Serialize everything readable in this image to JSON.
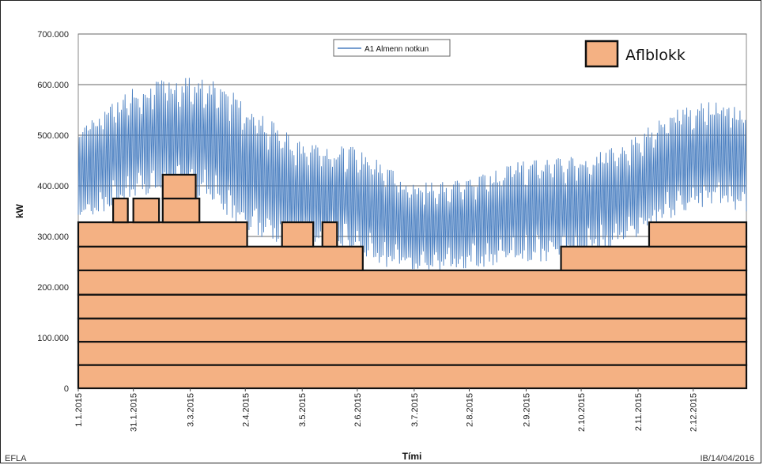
{
  "chart_data": {
    "type": "line",
    "xlabel": "Tími",
    "ylabel": "kW",
    "ylim": [
      0,
      700000
    ],
    "yticks": [
      "0",
      "100.000",
      "200.000",
      "300.000",
      "400.000",
      "500.000",
      "600.000",
      "700.000"
    ],
    "xticks": [
      "1.1.2015",
      "31.1.2015",
      "3.3.2015",
      "2.4.2015",
      "3.5.2015",
      "2.6.2015",
      "3.7.2015",
      "2.8.2015",
      "2.9.2015",
      "2.10.2015",
      "2.11.2015",
      "2.12.2015"
    ],
    "grid": true,
    "series": [
      {
        "name": "A1 Almenn notkun",
        "color": "#4a7fc1",
        "envelope": {
          "day": [
            0,
            15,
            30,
            45,
            60,
            75,
            90,
            105,
            120,
            135,
            150,
            165,
            180,
            195,
            210,
            225,
            240,
            255,
            270,
            285,
            300,
            315,
            330,
            345,
            364
          ],
          "high": [
            510,
            545,
            585,
            600,
            605,
            600,
            560,
            520,
            480,
            470,
            470,
            440,
            400,
            400,
            405,
            420,
            440,
            445,
            450,
            460,
            480,
            520,
            550,
            560,
            545
          ],
          "low": [
            340,
            360,
            390,
            395,
            395,
            370,
            330,
            300,
            290,
            280,
            280,
            250,
            240,
            240,
            245,
            250,
            260,
            260,
            265,
            280,
            300,
            330,
            360,
            370,
            355
          ]
        }
      }
    ],
    "power_blocks": {
      "label": "Aflblokk",
      "color": "#f4b183",
      "blocks": [
        {
          "start_day": 0,
          "end_day": 364,
          "bottom": 0,
          "top": 46000
        },
        {
          "start_day": 0,
          "end_day": 364,
          "bottom": 46000,
          "top": 92000
        },
        {
          "start_day": 0,
          "end_day": 364,
          "bottom": 92000,
          "top": 138000
        },
        {
          "start_day": 0,
          "end_day": 364,
          "bottom": 138000,
          "top": 185000
        },
        {
          "start_day": 0,
          "end_day": 364,
          "bottom": 185000,
          "top": 233000
        },
        {
          "start_day": 0,
          "end_day": 155,
          "bottom": 233000,
          "top": 280000
        },
        {
          "start_day": 263,
          "end_day": 364,
          "bottom": 233000,
          "top": 280000
        },
        {
          "start_day": 0,
          "end_day": 92,
          "bottom": 280000,
          "top": 328000
        },
        {
          "start_day": 111,
          "end_day": 128,
          "bottom": 280000,
          "top": 328000
        },
        {
          "start_day": 133,
          "end_day": 141,
          "bottom": 280000,
          "top": 328000
        },
        {
          "start_day": 311,
          "end_day": 364,
          "bottom": 280000,
          "top": 328000
        },
        {
          "start_day": 19,
          "end_day": 27,
          "bottom": 328000,
          "top": 375000
        },
        {
          "start_day": 30,
          "end_day": 44,
          "bottom": 328000,
          "top": 375000
        },
        {
          "start_day": 46,
          "end_day": 66,
          "bottom": 328000,
          "top": 375000
        },
        {
          "start_day": 46,
          "end_day": 64,
          "bottom": 375000,
          "top": 422000
        }
      ]
    }
  },
  "legend": {
    "line_label": "A1 Almenn notkun",
    "block_label": "Aflblokk"
  },
  "footer": {
    "left": "EFLA",
    "right": "IB/14/04/2016"
  }
}
